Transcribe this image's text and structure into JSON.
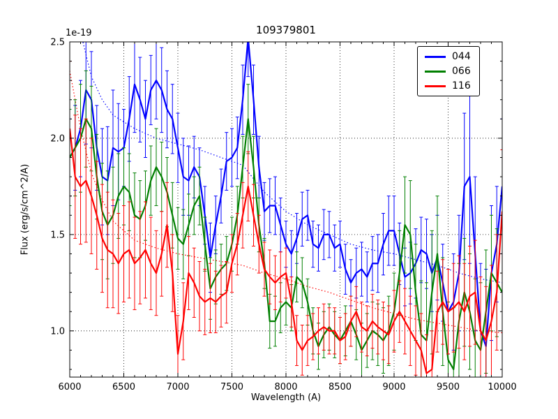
{
  "chart_data": {
    "type": "line",
    "title": "109379801",
    "xlabel": "Wavelength (A)",
    "ylabel": "Flux (erg/s/cm^2/A)",
    "y_offset_text": "1e-19",
    "xlim": [
      6000,
      10000
    ],
    "ylim": [
      0.76,
      2.5
    ],
    "xticks": [
      6000,
      6500,
      7000,
      7500,
      8000,
      8500,
      9000,
      9500,
      10000
    ],
    "yticks": [
      1.0,
      1.5,
      2.0,
      2.5
    ],
    "ytick_labels": [
      "1.0",
      "1.5",
      "2.0",
      "2.5"
    ],
    "minor_x_step": 100,
    "minor_y_step": 0.1,
    "grid": "dotted",
    "legend": {
      "position": "upper right",
      "entries": [
        "044",
        "066",
        "116"
      ]
    },
    "x": [
      6000,
      6050,
      6100,
      6150,
      6200,
      6250,
      6300,
      6350,
      6400,
      6450,
      6500,
      6550,
      6600,
      6650,
      6700,
      6750,
      6800,
      6850,
      6900,
      6950,
      7000,
      7050,
      7100,
      7150,
      7200,
      7250,
      7300,
      7350,
      7400,
      7450,
      7500,
      7550,
      7600,
      7650,
      7700,
      7750,
      7800,
      7850,
      7900,
      7950,
      8000,
      8050,
      8100,
      8150,
      8200,
      8250,
      8300,
      8350,
      8400,
      8450,
      8500,
      8550,
      8600,
      8650,
      8700,
      8750,
      8800,
      8850,
      8900,
      8950,
      9000,
      9050,
      9100,
      9150,
      9200,
      9250,
      9300,
      9350,
      9400,
      9450,
      9500,
      9550,
      9600,
      9650,
      9700,
      9750,
      9800,
      9850,
      9900,
      9950,
      10000
    ],
    "series": [
      {
        "name": "044",
        "color": "#0000ff",
        "values": [
          1.9,
          1.95,
          2.05,
          2.25,
          2.2,
          1.95,
          1.8,
          1.78,
          1.95,
          1.93,
          1.95,
          2.1,
          2.28,
          2.2,
          2.1,
          2.25,
          2.3,
          2.25,
          2.15,
          2.1,
          1.95,
          1.8,
          1.78,
          1.85,
          1.8,
          1.6,
          1.38,
          1.55,
          1.7,
          1.88,
          1.9,
          1.95,
          2.2,
          2.52,
          2.2,
          1.85,
          1.62,
          1.65,
          1.65,
          1.55,
          1.45,
          1.4,
          1.48,
          1.58,
          1.6,
          1.45,
          1.43,
          1.5,
          1.5,
          1.43,
          1.45,
          1.32,
          1.25,
          1.3,
          1.32,
          1.28,
          1.35,
          1.35,
          1.45,
          1.52,
          1.52,
          1.4,
          1.28,
          1.3,
          1.35,
          1.42,
          1.4,
          1.3,
          1.38,
          1.25,
          1.1,
          1.15,
          1.3,
          1.75,
          1.8,
          1.4,
          1.0,
          0.92,
          1.3,
          1.45,
          1.75
        ],
        "err": [
          0.2,
          0.22,
          0.25,
          0.28,
          0.25,
          0.22,
          0.25,
          0.28,
          0.3,
          0.25,
          0.2,
          0.22,
          0.25,
          0.22,
          0.2,
          0.18,
          0.2,
          0.22,
          0.2,
          0.18,
          0.18,
          0.2,
          0.18,
          0.16,
          0.15,
          0.15,
          0.18,
          0.15,
          0.14,
          0.15,
          0.15,
          0.16,
          0.18,
          0.2,
          0.18,
          0.16,
          0.15,
          0.14,
          0.15,
          0.14,
          0.12,
          0.12,
          0.13,
          0.14,
          0.13,
          0.12,
          0.12,
          0.13,
          0.12,
          0.12,
          0.12,
          0.13,
          0.12,
          0.13,
          0.14,
          0.13,
          0.14,
          0.15,
          0.16,
          0.18,
          0.18,
          0.16,
          0.15,
          0.16,
          0.18,
          0.17,
          0.18,
          0.2,
          0.22,
          0.2,
          0.22,
          0.25,
          0.3,
          0.38,
          0.45,
          0.4,
          0.35,
          0.4,
          0.35,
          0.3,
          0.35
        ]
      },
      {
        "name": "066",
        "color": "#007f00",
        "values": [
          1.9,
          1.95,
          2.0,
          2.1,
          2.05,
          1.8,
          1.62,
          1.55,
          1.6,
          1.7,
          1.75,
          1.72,
          1.6,
          1.58,
          1.65,
          1.78,
          1.85,
          1.8,
          1.72,
          1.6,
          1.48,
          1.45,
          1.55,
          1.65,
          1.7,
          1.45,
          1.22,
          1.28,
          1.32,
          1.35,
          1.45,
          1.6,
          1.85,
          2.1,
          1.85,
          1.55,
          1.35,
          1.05,
          1.05,
          1.12,
          1.15,
          1.12,
          1.28,
          1.25,
          1.15,
          1.0,
          0.92,
          0.98,
          1.02,
          0.98,
          0.95,
          1.0,
          1.05,
          0.98,
          0.9,
          0.95,
          1.0,
          0.98,
          0.95,
          1.0,
          1.1,
          1.3,
          1.55,
          1.5,
          1.2,
          0.98,
          0.95,
          1.2,
          1.4,
          1.1,
          0.85,
          0.8,
          1.05,
          1.2,
          1.1,
          0.95,
          0.9,
          1.1,
          1.3,
          1.25,
          1.2
        ],
        "err": [
          0.25,
          0.25,
          0.28,
          0.25,
          0.22,
          0.22,
          0.25,
          0.28,
          0.25,
          0.22,
          0.2,
          0.2,
          0.22,
          0.2,
          0.18,
          0.18,
          0.2,
          0.18,
          0.18,
          0.17,
          0.16,
          0.18,
          0.16,
          0.15,
          0.15,
          0.14,
          0.16,
          0.14,
          0.13,
          0.14,
          0.14,
          0.15,
          0.16,
          0.18,
          0.16,
          0.14,
          0.13,
          0.14,
          0.13,
          0.13,
          0.12,
          0.12,
          0.13,
          0.13,
          0.12,
          0.12,
          0.12,
          0.12,
          0.12,
          0.12,
          0.12,
          0.13,
          0.13,
          0.13,
          0.14,
          0.14,
          0.15,
          0.16,
          0.17,
          0.18,
          0.2,
          0.22,
          0.25,
          0.28,
          0.25,
          0.28,
          0.3,
          0.32,
          0.3,
          0.28,
          0.3,
          0.32,
          0.3,
          0.28,
          0.3,
          0.32,
          0.35,
          0.32,
          0.3,
          0.28,
          0.3
        ]
      },
      {
        "name": "116",
        "color": "#ff0000",
        "values": [
          2.05,
          1.8,
          1.75,
          1.78,
          1.7,
          1.6,
          1.48,
          1.42,
          1.4,
          1.35,
          1.4,
          1.42,
          1.35,
          1.38,
          1.42,
          1.35,
          1.3,
          1.4,
          1.55,
          1.3,
          0.88,
          1.05,
          1.3,
          1.25,
          1.18,
          1.15,
          1.17,
          1.15,
          1.18,
          1.2,
          1.35,
          1.45,
          1.6,
          1.75,
          1.6,
          1.45,
          1.32,
          1.28,
          1.25,
          1.28,
          1.3,
          1.15,
          0.95,
          0.9,
          0.95,
          0.97,
          1.0,
          1.02,
          1.0,
          1.0,
          0.95,
          0.97,
          1.05,
          1.1,
          1.02,
          1.0,
          1.05,
          1.02,
          1.0,
          0.98,
          1.05,
          1.1,
          1.05,
          1.0,
          0.95,
          0.9,
          0.78,
          0.8,
          1.1,
          1.15,
          1.1,
          1.12,
          1.15,
          1.1,
          1.18,
          1.2,
          1.0,
          0.95,
          1.05,
          1.2,
          1.62
        ],
        "err": [
          0.35,
          0.32,
          0.3,
          0.32,
          0.3,
          0.28,
          0.28,
          0.3,
          0.28,
          0.26,
          0.25,
          0.25,
          0.24,
          0.24,
          0.25,
          0.24,
          0.22,
          0.22,
          0.22,
          0.2,
          0.2,
          0.2,
          0.19,
          0.18,
          0.18,
          0.17,
          0.18,
          0.16,
          0.16,
          0.16,
          0.15,
          0.16,
          0.17,
          0.18,
          0.16,
          0.15,
          0.14,
          0.14,
          0.14,
          0.13,
          0.13,
          0.13,
          0.13,
          0.13,
          0.13,
          0.12,
          0.12,
          0.12,
          0.12,
          0.12,
          0.12,
          0.12,
          0.13,
          0.13,
          0.13,
          0.13,
          0.14,
          0.14,
          0.15,
          0.15,
          0.16,
          0.16,
          0.17,
          0.18,
          0.18,
          0.19,
          0.2,
          0.2,
          0.21,
          0.22,
          0.22,
          0.23,
          0.24,
          0.25,
          0.26,
          0.27,
          0.28,
          0.28,
          0.29,
          0.3,
          0.32
        ]
      }
    ],
    "fit_lines": [
      {
        "name": "continuum-fit-blue",
        "color": "#0000ff",
        "style": "dotted",
        "x": [
          6000,
          6100,
          6200,
          6300,
          6400,
          6600,
          6800,
          7000,
          7200,
          7400,
          7600,
          7800,
          8000,
          8200,
          8400,
          8600,
          8800,
          9000,
          9200,
          9400,
          9600,
          9800,
          10000
        ],
        "y": [
          2.9,
          2.55,
          2.32,
          2.2,
          2.12,
          2.05,
          2.0,
          1.97,
          1.94,
          1.9,
          1.86,
          1.72,
          1.62,
          1.55,
          1.5,
          1.45,
          1.42,
          1.4,
          1.37,
          1.34,
          1.3,
          1.27,
          1.25
        ]
      },
      {
        "name": "continuum-fit-red",
        "color": "#ff0000",
        "style": "dotted",
        "x": [
          6000,
          6100,
          6200,
          6300,
          6400,
          6600,
          6800,
          7000,
          7200,
          7400,
          7600,
          7800,
          8000,
          8200,
          8400,
          8600,
          8800,
          9000,
          9200,
          9400,
          9600,
          9800,
          10000
        ],
        "y": [
          2.35,
          2.05,
          1.82,
          1.68,
          1.57,
          1.47,
          1.43,
          1.4,
          1.38,
          1.36,
          1.34,
          1.3,
          1.27,
          1.23,
          1.2,
          1.16,
          1.12,
          1.09,
          1.06,
          1.04,
          1.02,
          1.0,
          0.99
        ]
      }
    ]
  }
}
